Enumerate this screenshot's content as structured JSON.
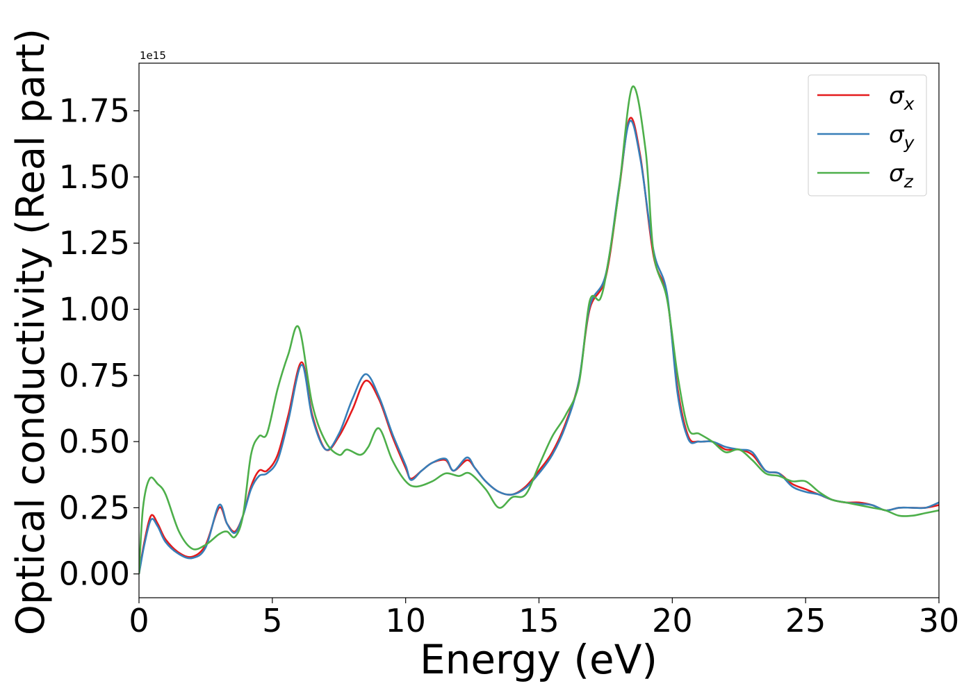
{
  "chart_data": {
    "type": "line",
    "title": "",
    "xlabel": "Energy (eV)",
    "ylabel": "Optical conductivity (Real part)",
    "offset_text": "1e15",
    "xlim": [
      0,
      30
    ],
    "ylim": [
      -0.09,
      1.93
    ],
    "xticks": [
      0,
      5,
      10,
      15,
      20,
      25,
      30
    ],
    "xtick_labels": [
      "0",
      "5",
      "10",
      "15",
      "20",
      "25",
      "30"
    ],
    "yticks": [
      0,
      0.25,
      0.5,
      0.75,
      1.0,
      1.25,
      1.5,
      1.75
    ],
    "ytick_labels": [
      "0.00",
      "0.25",
      "0.50",
      "0.75",
      "1.00",
      "1.25",
      "1.50",
      "1.75"
    ],
    "grid": false,
    "legend_position": "top-right",
    "series": [
      {
        "name": "σ",
        "subscript": "x",
        "color": "#e41a1c",
        "x": [
          0,
          0.2,
          0.45,
          0.7,
          1.0,
          1.5,
          2.0,
          2.5,
          3.0,
          3.3,
          3.6,
          3.9,
          4.2,
          4.5,
          4.8,
          5.2,
          5.6,
          6.1,
          6.5,
          7.0,
          7.5,
          8.0,
          8.5,
          9.0,
          9.5,
          10.0,
          10.2,
          10.6,
          11.0,
          11.5,
          11.8,
          12.3,
          12.6,
          13.0,
          13.5,
          14.0,
          14.5,
          15.0,
          15.5,
          16.0,
          16.5,
          16.9,
          17.5,
          18.0,
          18.4,
          18.8,
          19.3,
          19.8,
          20.2,
          20.6,
          21.0,
          21.5,
          22.0,
          22.5,
          23.0,
          23.5,
          24.0,
          24.5,
          25.0,
          25.5,
          26.0,
          26.5,
          27.0,
          27.5,
          28.0,
          28.5,
          29.0,
          29.5,
          30.0
        ],
        "values": [
          0,
          0.12,
          0.22,
          0.19,
          0.13,
          0.08,
          0.065,
          0.11,
          0.25,
          0.19,
          0.16,
          0.22,
          0.33,
          0.39,
          0.39,
          0.45,
          0.6,
          0.8,
          0.6,
          0.47,
          0.52,
          0.62,
          0.73,
          0.66,
          0.52,
          0.4,
          0.36,
          0.39,
          0.42,
          0.43,
          0.39,
          0.43,
          0.4,
          0.35,
          0.31,
          0.3,
          0.33,
          0.39,
          0.46,
          0.57,
          0.73,
          1.0,
          1.12,
          1.45,
          1.72,
          1.58,
          1.2,
          1.05,
          0.7,
          0.52,
          0.5,
          0.5,
          0.47,
          0.47,
          0.45,
          0.39,
          0.38,
          0.34,
          0.32,
          0.3,
          0.28,
          0.27,
          0.27,
          0.26,
          0.24,
          0.25,
          0.25,
          0.25,
          0.26
        ]
      },
      {
        "name": "σ",
        "subscript": "y",
        "color": "#377eb8",
        "x": [
          0,
          0.2,
          0.45,
          0.7,
          1.0,
          1.5,
          2.0,
          2.5,
          3.0,
          3.3,
          3.6,
          3.9,
          4.2,
          4.5,
          4.8,
          5.2,
          5.6,
          6.1,
          6.5,
          7.0,
          7.5,
          8.0,
          8.5,
          9.0,
          9.5,
          10.0,
          10.2,
          10.6,
          11.0,
          11.5,
          11.8,
          12.3,
          12.6,
          13.0,
          13.5,
          14.0,
          14.5,
          15.0,
          15.5,
          16.0,
          16.5,
          16.9,
          17.5,
          18.0,
          18.4,
          18.8,
          19.3,
          19.8,
          20.2,
          20.6,
          21.0,
          21.5,
          22.0,
          22.5,
          23.0,
          23.5,
          24.0,
          24.5,
          25.0,
          25.5,
          26.0,
          26.5,
          27.0,
          27.5,
          28.0,
          28.5,
          29.0,
          29.5,
          30.0
        ],
        "values": [
          0,
          0.11,
          0.205,
          0.18,
          0.12,
          0.075,
          0.06,
          0.1,
          0.26,
          0.19,
          0.155,
          0.22,
          0.32,
          0.37,
          0.38,
          0.43,
          0.58,
          0.79,
          0.59,
          0.47,
          0.53,
          0.66,
          0.755,
          0.67,
          0.53,
          0.41,
          0.355,
          0.39,
          0.42,
          0.435,
          0.39,
          0.44,
          0.4,
          0.35,
          0.31,
          0.3,
          0.325,
          0.38,
          0.45,
          0.56,
          0.73,
          1.01,
          1.13,
          1.46,
          1.71,
          1.57,
          1.22,
          1.06,
          0.68,
          0.51,
          0.5,
          0.5,
          0.48,
          0.47,
          0.46,
          0.39,
          0.38,
          0.33,
          0.31,
          0.3,
          0.28,
          0.27,
          0.265,
          0.26,
          0.24,
          0.25,
          0.25,
          0.25,
          0.27
        ]
      },
      {
        "name": "σ",
        "subscript": "z",
        "color": "#4daf4a",
        "x": [
          0,
          0.15,
          0.4,
          0.7,
          1.0,
          1.5,
          2.0,
          2.5,
          3.0,
          3.3,
          3.6,
          3.9,
          4.2,
          4.5,
          4.8,
          5.2,
          5.6,
          6.0,
          6.5,
          7.0,
          7.5,
          7.8,
          8.3,
          8.6,
          9.0,
          9.5,
          10.0,
          10.4,
          11.0,
          11.5,
          12.0,
          12.4,
          13.0,
          13.5,
          14.0,
          14.5,
          15.0,
          15.5,
          16.0,
          16.5,
          16.9,
          17.3,
          17.6,
          18.0,
          18.5,
          19.0,
          19.3,
          19.8,
          20.2,
          20.6,
          21.0,
          21.5,
          22.0,
          22.5,
          23.0,
          23.5,
          24.0,
          24.5,
          25.0,
          25.5,
          26.0,
          26.5,
          27.0,
          27.5,
          28.0,
          28.5,
          29.0,
          29.5,
          30.0
        ],
        "values": [
          0,
          0.25,
          0.36,
          0.34,
          0.3,
          0.16,
          0.095,
          0.11,
          0.15,
          0.16,
          0.14,
          0.22,
          0.45,
          0.52,
          0.53,
          0.7,
          0.83,
          0.93,
          0.64,
          0.5,
          0.45,
          0.47,
          0.45,
          0.48,
          0.55,
          0.43,
          0.35,
          0.33,
          0.35,
          0.38,
          0.37,
          0.38,
          0.32,
          0.25,
          0.29,
          0.3,
          0.41,
          0.52,
          0.6,
          0.72,
          1.03,
          1.04,
          1.18,
          1.45,
          1.84,
          1.6,
          1.21,
          1.04,
          0.75,
          0.55,
          0.53,
          0.5,
          0.46,
          0.47,
          0.43,
          0.38,
          0.37,
          0.35,
          0.35,
          0.31,
          0.28,
          0.27,
          0.26,
          0.25,
          0.24,
          0.22,
          0.22,
          0.23,
          0.24
        ]
      }
    ]
  }
}
